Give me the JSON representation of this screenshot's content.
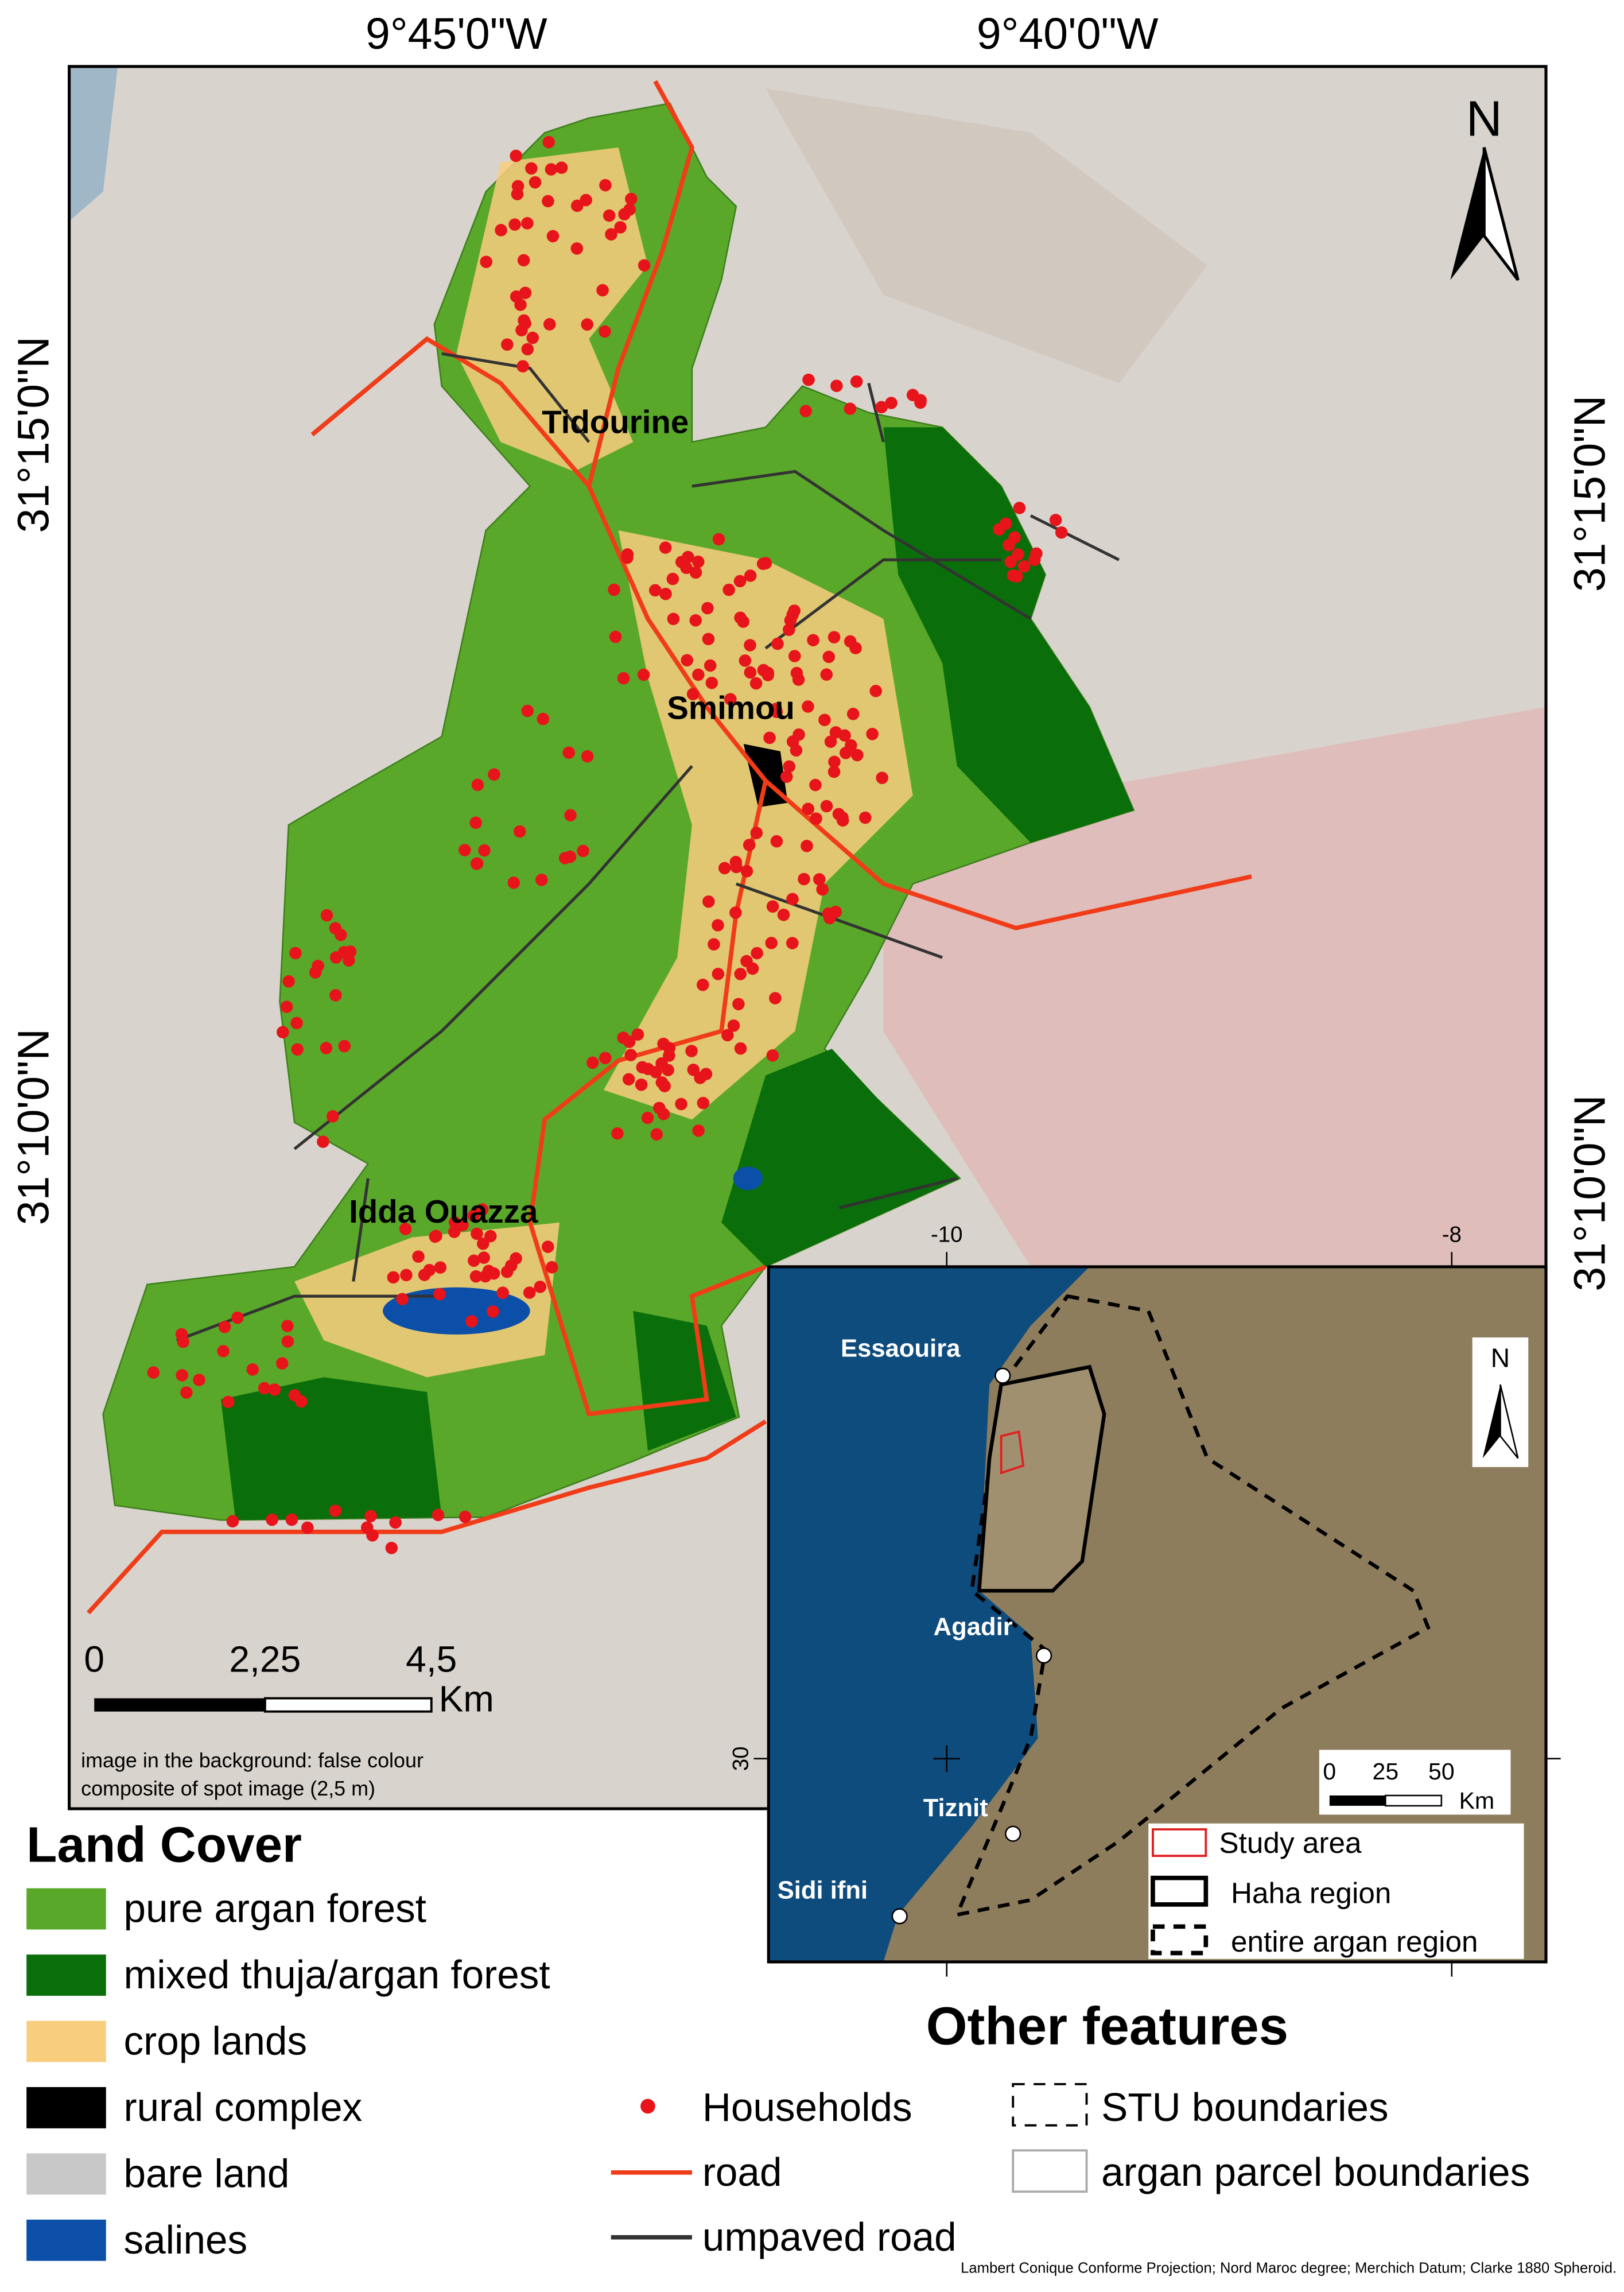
{
  "map": {
    "graticule": {
      "top": [
        "9°45'0\"W",
        "9°40'0\"W"
      ],
      "left": [
        "31°15'0\"N",
        "31°10'0\"N"
      ],
      "right": [
        "31°15'0\"N",
        "31°10'0\"N"
      ]
    },
    "north_arrow": "N",
    "places": [
      "Tidourine",
      "Smimou",
      "Idda Ouazza"
    ],
    "scale_bar": {
      "labels": [
        "0",
        "2,25",
        "4,5"
      ],
      "unit": "Km"
    },
    "note": [
      "image in the background: false colour",
      "composite of spot image (2,5 m)"
    ]
  },
  "inset": {
    "ticks": {
      "x": [
        "-10",
        "-8"
      ],
      "y": [
        "30"
      ]
    },
    "north_arrow": "N",
    "places": [
      "Essaouira",
      "Agadir",
      "Tiznit",
      "Sidi ifni"
    ],
    "scale_bar": {
      "labels": [
        "0",
        "25",
        "50"
      ],
      "unit": "Km"
    },
    "legend": [
      "Study area",
      "Haha region",
      "entire argan region"
    ]
  },
  "land_cover": {
    "title": "Land Cover",
    "items": [
      {
        "label": "pure argan forest",
        "color": "#5aa82a"
      },
      {
        "label": "mixed thuja/argan forest",
        "color": "#0a6e0a"
      },
      {
        "label": "crop lands",
        "color": "#f9cd7e"
      },
      {
        "label": "rural complex",
        "color": "#000000"
      },
      {
        "label": "bare land",
        "color": "#c8c8c8"
      },
      {
        "label": "salines",
        "color": "#0b4fa8"
      }
    ]
  },
  "other_features": {
    "title": "Other features",
    "items": [
      "Households",
      "road",
      "umpaved road",
      "STU boundaries",
      "argan parcel boundaries"
    ]
  },
  "footer": "Lambert Conique Conforme Projection; Nord Maroc degree; Merchich Datum; Clarke 1880 Spheroid."
}
